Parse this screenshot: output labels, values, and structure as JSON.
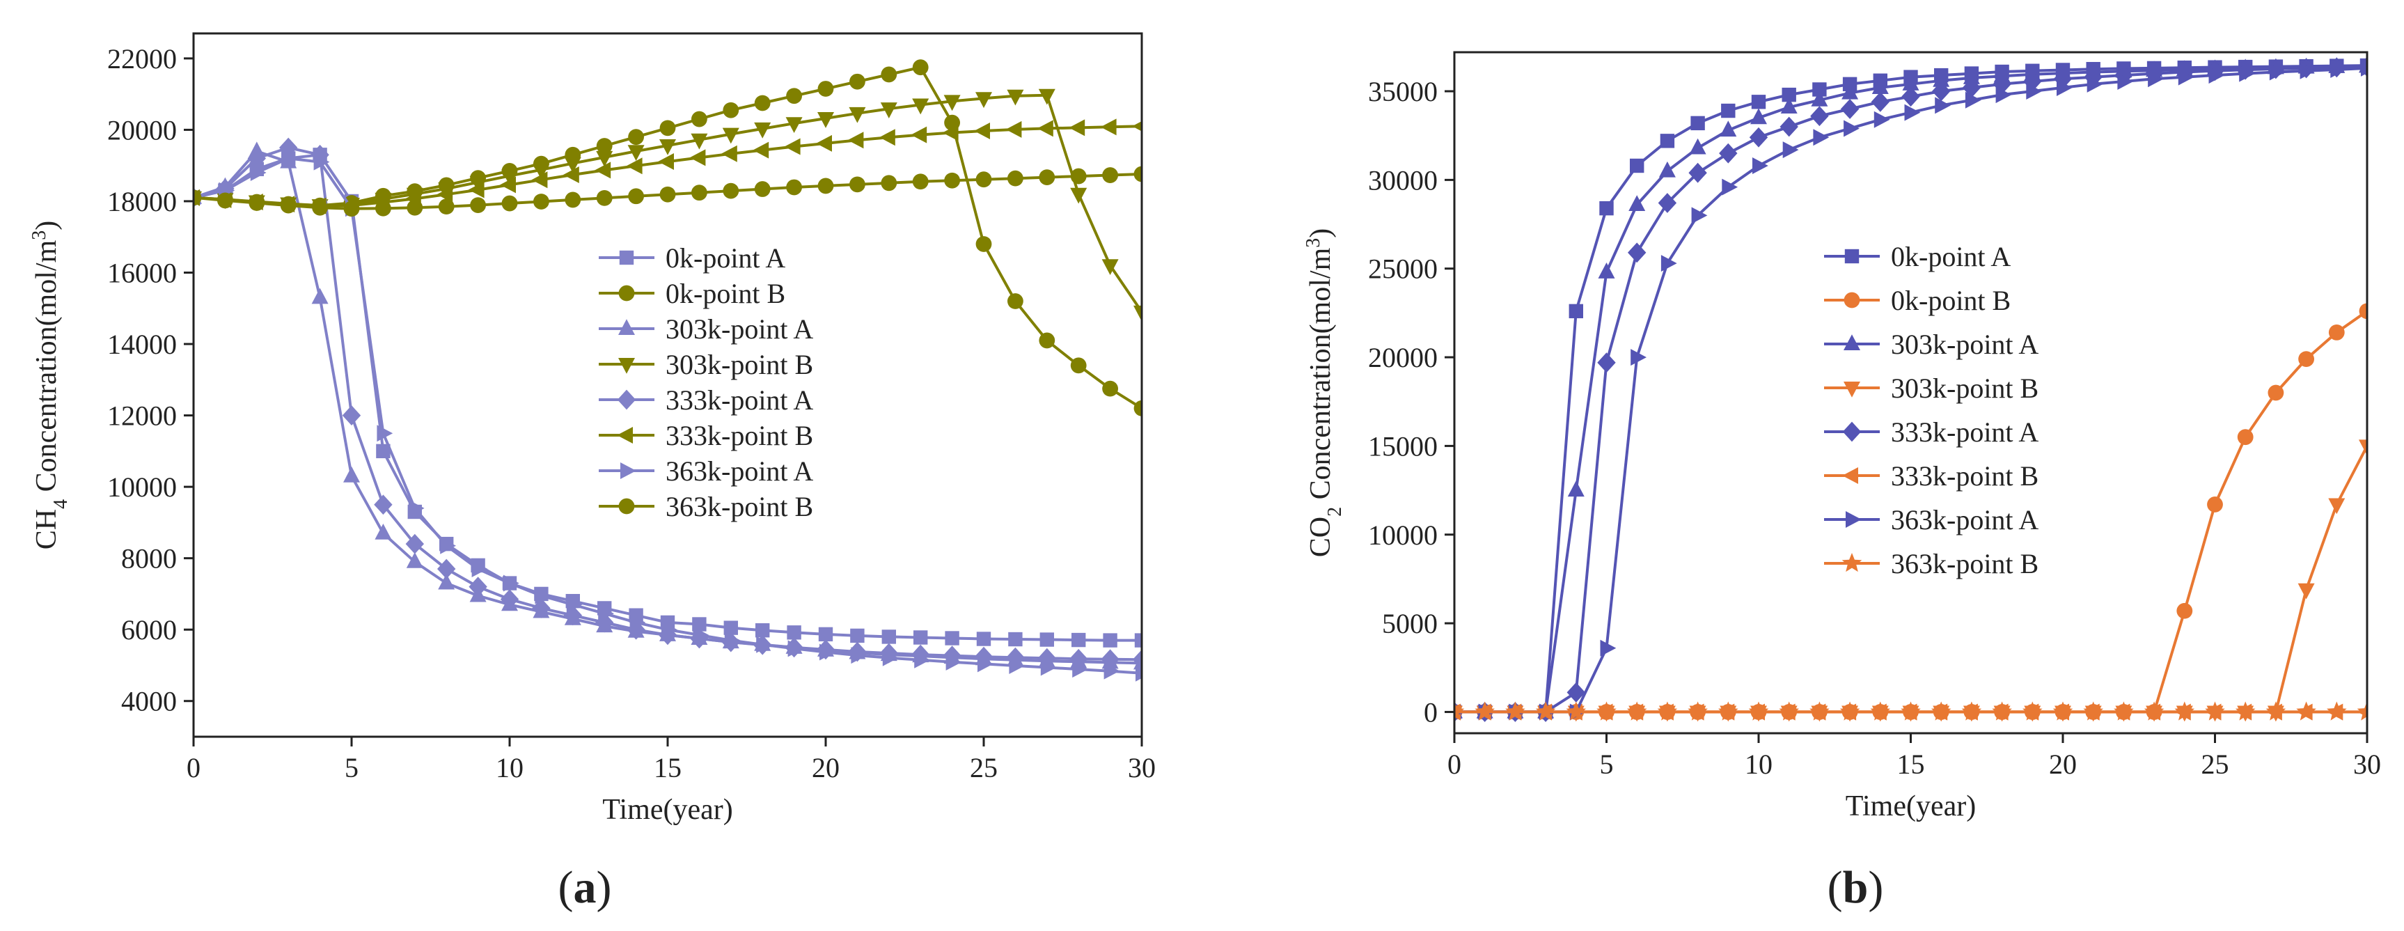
{
  "chart_data": [
    {
      "type": "line",
      "panel_label": "(a)",
      "xlabel": "Time(year)",
      "ylabel_main": "CH",
      "ylabel_sub": "4",
      "ylabel_rest": " Concentration(mol/m",
      "ylabel_sup": "3",
      "ylabel_end": ")",
      "xlim": [
        0,
        30
      ],
      "ylim": [
        3000,
        22700
      ],
      "xticks": [
        0,
        5,
        10,
        15,
        20,
        25,
        30
      ],
      "yticks": [
        4000,
        6000,
        8000,
        10000,
        12000,
        14000,
        16000,
        18000,
        20000,
        22000
      ],
      "legend_position": "center-right",
      "series": [
        {
          "name": "0k-point A",
          "color": "#8080c8",
          "marker": "square",
          "values": [
            18100,
            18300,
            18900,
            19200,
            19300,
            18000,
            11000,
            9300,
            8400,
            7800,
            7300,
            7000,
            6800,
            6600,
            6400,
            6200,
            6150,
            6050,
            5980,
            5920,
            5870,
            5830,
            5800,
            5780,
            5760,
            5740,
            5730,
            5720,
            5710,
            5700,
            5700
          ]
        },
        {
          "name": "0k-point B",
          "color": "#808000",
          "marker": "circle",
          "values": [
            18100,
            18050,
            17980,
            17920,
            17880,
            17950,
            18150,
            18280,
            18450,
            18650,
            18850,
            19050,
            19300,
            19550,
            19800,
            20050,
            20300,
            20550,
            20750,
            20950,
            21150,
            21350,
            21550,
            21750,
            20200,
            16800,
            15200,
            14100,
            13400,
            12750,
            12200
          ]
        },
        {
          "name": "303k-point A",
          "color": "#8080c8",
          "marker": "triangle-up",
          "values": [
            18100,
            18400,
            19400,
            19100,
            15300,
            10300,
            8700,
            7900,
            7300,
            6950,
            6700,
            6500,
            6300,
            6100,
            5950,
            5850,
            5750,
            5650,
            5580,
            5500,
            5420,
            5350,
            5300,
            5260,
            5220,
            5180,
            5150,
            5120,
            5100,
            5080,
            5060
          ]
        },
        {
          "name": "303k-point B",
          "color": "#808000",
          "marker": "triangle-down",
          "values": [
            18100,
            18050,
            17990,
            17930,
            17880,
            17920,
            18060,
            18200,
            18350,
            18530,
            18710,
            18880,
            19060,
            19230,
            19400,
            19560,
            19720,
            19880,
            20030,
            20180,
            20320,
            20460,
            20590,
            20700,
            20800,
            20880,
            20950,
            20970,
            18200,
            16200,
            14900
          ]
        },
        {
          "name": "333k-point A",
          "color": "#8080c8",
          "marker": "diamond",
          "values": [
            18100,
            18350,
            19200,
            19500,
            19300,
            12000,
            9500,
            8400,
            7700,
            7200,
            6850,
            6600,
            6400,
            6200,
            6000,
            5850,
            5750,
            5650,
            5570,
            5500,
            5440,
            5380,
            5340,
            5300,
            5270,
            5240,
            5220,
            5200,
            5180,
            5170,
            5160
          ]
        },
        {
          "name": "333k-point B",
          "color": "#808000",
          "marker": "triangle-left",
          "values": [
            18100,
            18040,
            17980,
            17920,
            17870,
            17880,
            17970,
            18070,
            18190,
            18320,
            18460,
            18600,
            18740,
            18870,
            18990,
            19110,
            19220,
            19330,
            19430,
            19530,
            19620,
            19710,
            19790,
            19860,
            19920,
            19970,
            20010,
            20040,
            20060,
            20080,
            20100
          ]
        },
        {
          "name": "363k-point A",
          "color": "#8080c8",
          "marker": "triangle-right",
          "values": [
            18100,
            18300,
            18800,
            19200,
            19100,
            17800,
            11500,
            9400,
            8350,
            7700,
            7300,
            6950,
            6700,
            6450,
            6200,
            6000,
            5850,
            5700,
            5580,
            5470,
            5370,
            5280,
            5210,
            5150,
            5090,
            5040,
            4990,
            4940,
            4890,
            4840,
            4780
          ]
        },
        {
          "name": "363k-point B",
          "color": "#808000",
          "marker": "circle",
          "values": [
            18100,
            18020,
            17950,
            17880,
            17820,
            17790,
            17800,
            17820,
            17850,
            17890,
            17940,
            17990,
            18040,
            18090,
            18140,
            18190,
            18240,
            18290,
            18340,
            18390,
            18430,
            18470,
            18510,
            18550,
            18580,
            18610,
            18640,
            18670,
            18700,
            18730,
            18760
          ]
        }
      ]
    },
    {
      "type": "line",
      "panel_label": "(b)",
      "xlabel": "Time(year)",
      "ylabel_main": "CO",
      "ylabel_sub": "2",
      "ylabel_rest": " Concentration(mol/m",
      "ylabel_sup": "3",
      "ylabel_end": ")",
      "xlim": [
        0,
        30
      ],
      "ylim": [
        -1200,
        37200
      ],
      "xticks": [
        0,
        5,
        10,
        15,
        20,
        25,
        30
      ],
      "yticks": [
        0,
        5000,
        10000,
        15000,
        20000,
        25000,
        30000,
        35000
      ],
      "legend_position": "center",
      "series": [
        {
          "name": "0k-point A",
          "color": "#5454b4",
          "marker": "square",
          "values": [
            0,
            0,
            0,
            0,
            22600,
            28400,
            30800,
            32200,
            33200,
            33900,
            34400,
            34800,
            35100,
            35400,
            35600,
            35800,
            35900,
            36000,
            36100,
            36150,
            36200,
            36250,
            36280,
            36300,
            36330,
            36350,
            36370,
            36390,
            36410,
            36430,
            36450
          ]
        },
        {
          "name": "0k-point B",
          "color": "#e87832",
          "marker": "circle",
          "values": [
            0,
            0,
            0,
            0,
            0,
            0,
            0,
            0,
            0,
            0,
            0,
            0,
            0,
            0,
            0,
            0,
            0,
            0,
            0,
            0,
            0,
            0,
            0,
            0,
            5700,
            11700,
            15500,
            18000,
            19900,
            21400,
            22600
          ]
        },
        {
          "name": "303k-point A",
          "color": "#5454b4",
          "marker": "triangle-up",
          "values": [
            0,
            0,
            0,
            0,
            12500,
            24800,
            28600,
            30500,
            31800,
            32800,
            33500,
            34100,
            34500,
            34900,
            35200,
            35400,
            35600,
            35750,
            35850,
            35950,
            36020,
            36080,
            36130,
            36170,
            36210,
            36250,
            36290,
            36320,
            36350,
            36380,
            36400
          ]
        },
        {
          "name": "303k-point B",
          "color": "#e87832",
          "marker": "triangle-down",
          "values": [
            0,
            0,
            0,
            0,
            0,
            0,
            0,
            0,
            0,
            0,
            0,
            0,
            0,
            0,
            0,
            0,
            0,
            0,
            0,
            0,
            0,
            0,
            0,
            0,
            0,
            0,
            0,
            0,
            6900,
            11700,
            15000
          ]
        },
        {
          "name": "333k-point A",
          "color": "#5454b4",
          "marker": "diamond",
          "values": [
            0,
            0,
            0,
            0,
            1100,
            19700,
            25900,
            28700,
            30400,
            31500,
            32400,
            33000,
            33600,
            34000,
            34400,
            34700,
            35000,
            35200,
            35400,
            35550,
            35700,
            35800,
            35900,
            36000,
            36080,
            36150,
            36210,
            36260,
            36300,
            36340,
            36380
          ]
        },
        {
          "name": "333k-point B",
          "color": "#e87832",
          "marker": "triangle-left",
          "values": [
            0,
            0,
            0,
            0,
            0,
            0,
            0,
            0,
            0,
            0,
            0,
            0,
            0,
            0,
            0,
            0,
            0,
            0,
            0,
            0,
            0,
            0,
            0,
            0,
            0,
            0,
            0,
            0,
            0,
            0,
            0
          ]
        },
        {
          "name": "363k-point A",
          "color": "#5454b4",
          "marker": "triangle-right",
          "values": [
            0,
            0,
            0,
            0,
            0,
            3600,
            20000,
            25300,
            28000,
            29600,
            30800,
            31700,
            32400,
            32900,
            33400,
            33800,
            34200,
            34500,
            34800,
            35000,
            35200,
            35400,
            35550,
            35700,
            35800,
            35900,
            36000,
            36080,
            36150,
            36220,
            36300
          ]
        },
        {
          "name": "363k-point B",
          "color": "#e87832",
          "marker": "star",
          "values": [
            0,
            0,
            0,
            0,
            0,
            0,
            0,
            0,
            0,
            0,
            0,
            0,
            0,
            0,
            0,
            0,
            0,
            0,
            0,
            0,
            0,
            0,
            0,
            0,
            0,
            0,
            0,
            0,
            0,
            0,
            0
          ]
        }
      ]
    }
  ]
}
